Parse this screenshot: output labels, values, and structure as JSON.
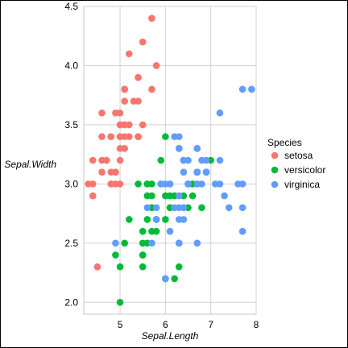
{
  "chart_data": {
    "type": "scatter",
    "title": "",
    "xlabel": "Sepal.Length",
    "ylabel": "Sepal.Width",
    "xlim": [
      4.2,
      8.0
    ],
    "ylim": [
      1.9,
      4.5
    ],
    "x_ticks": [
      "5",
      "6",
      "7",
      "8"
    ],
    "y_ticks": [
      "2.0",
      "2.5",
      "3.0",
      "3.5",
      "4.0",
      "4.5"
    ],
    "grid": true,
    "legend": {
      "title": "Species",
      "placement": "right"
    },
    "series": [
      {
        "name": "setosa",
        "color": "#F8766D",
        "points": [
          [
            5.1,
            3.5
          ],
          [
            4.9,
            3.0
          ],
          [
            4.7,
            3.2
          ],
          [
            4.6,
            3.1
          ],
          [
            5.0,
            3.6
          ],
          [
            5.4,
            3.9
          ],
          [
            4.6,
            3.4
          ],
          [
            5.0,
            3.4
          ],
          [
            4.4,
            2.9
          ],
          [
            4.9,
            3.1
          ],
          [
            5.4,
            3.7
          ],
          [
            4.8,
            3.4
          ],
          [
            4.8,
            3.0
          ],
          [
            4.3,
            3.0
          ],
          [
            5.8,
            4.0
          ],
          [
            5.7,
            4.4
          ],
          [
            5.4,
            3.9
          ],
          [
            5.1,
            3.5
          ],
          [
            5.7,
            3.8
          ],
          [
            5.1,
            3.8
          ],
          [
            5.4,
            3.4
          ],
          [
            5.1,
            3.7
          ],
          [
            4.6,
            3.6
          ],
          [
            5.1,
            3.3
          ],
          [
            4.8,
            3.4
          ],
          [
            5.0,
            3.0
          ],
          [
            5.0,
            3.4
          ],
          [
            5.2,
            3.5
          ],
          [
            5.2,
            3.4
          ],
          [
            4.7,
            3.2
          ],
          [
            4.8,
            3.1
          ],
          [
            5.4,
            3.4
          ],
          [
            5.2,
            4.1
          ],
          [
            5.5,
            4.2
          ],
          [
            4.9,
            3.1
          ],
          [
            5.0,
            3.2
          ],
          [
            5.5,
            3.5
          ],
          [
            4.9,
            3.6
          ],
          [
            4.4,
            3.0
          ],
          [
            5.1,
            3.4
          ],
          [
            5.0,
            3.5
          ],
          [
            4.5,
            2.3
          ],
          [
            4.4,
            3.2
          ],
          [
            5.0,
            3.5
          ],
          [
            5.1,
            3.8
          ],
          [
            4.8,
            3.0
          ],
          [
            5.1,
            3.8
          ],
          [
            4.6,
            3.2
          ],
          [
            5.3,
            3.7
          ],
          [
            5.0,
            3.3
          ]
        ]
      },
      {
        "name": "versicolor",
        "color": "#00BA38",
        "points": [
          [
            7.0,
            3.2
          ],
          [
            6.4,
            3.2
          ],
          [
            6.9,
            3.1
          ],
          [
            5.5,
            2.3
          ],
          [
            6.5,
            2.8
          ],
          [
            5.7,
            2.8
          ],
          [
            6.3,
            3.3
          ],
          [
            4.9,
            2.4
          ],
          [
            6.6,
            2.9
          ],
          [
            5.2,
            2.7
          ],
          [
            5.0,
            2.0
          ],
          [
            5.9,
            3.0
          ],
          [
            6.0,
            2.2
          ],
          [
            6.1,
            2.9
          ],
          [
            5.6,
            2.9
          ],
          [
            6.7,
            3.1
          ],
          [
            5.6,
            3.0
          ],
          [
            5.8,
            2.7
          ],
          [
            6.2,
            2.2
          ],
          [
            5.6,
            2.5
          ],
          [
            5.9,
            3.2
          ],
          [
            6.1,
            2.8
          ],
          [
            6.3,
            2.5
          ],
          [
            6.1,
            2.8
          ],
          [
            6.4,
            2.9
          ],
          [
            6.6,
            3.0
          ],
          [
            6.8,
            2.8
          ],
          [
            6.7,
            3.0
          ],
          [
            6.0,
            2.9
          ],
          [
            5.7,
            2.6
          ],
          [
            5.5,
            2.4
          ],
          [
            5.5,
            2.4
          ],
          [
            5.8,
            2.7
          ],
          [
            6.0,
            2.7
          ],
          [
            5.4,
            3.0
          ],
          [
            6.0,
            3.4
          ],
          [
            6.7,
            3.1
          ],
          [
            6.3,
            2.3
          ],
          [
            5.6,
            3.0
          ],
          [
            5.5,
            2.5
          ],
          [
            5.5,
            2.6
          ],
          [
            6.1,
            3.0
          ],
          [
            5.8,
            2.6
          ],
          [
            5.0,
            2.3
          ],
          [
            5.6,
            2.7
          ],
          [
            5.7,
            3.0
          ],
          [
            5.7,
            2.9
          ],
          [
            6.2,
            2.9
          ],
          [
            5.1,
            2.5
          ],
          [
            5.7,
            2.8
          ]
        ]
      },
      {
        "name": "virginica",
        "color": "#619CFF",
        "points": [
          [
            6.3,
            3.3
          ],
          [
            5.8,
            2.7
          ],
          [
            7.1,
            3.0
          ],
          [
            6.3,
            2.9
          ],
          [
            6.5,
            3.0
          ],
          [
            7.6,
            3.0
          ],
          [
            4.9,
            2.5
          ],
          [
            7.3,
            2.9
          ],
          [
            6.7,
            2.5
          ],
          [
            7.2,
            3.6
          ],
          [
            6.5,
            3.2
          ],
          [
            6.4,
            2.7
          ],
          [
            6.8,
            3.0
          ],
          [
            5.7,
            2.5
          ],
          [
            5.8,
            2.8
          ],
          [
            6.4,
            3.2
          ],
          [
            6.5,
            3.0
          ],
          [
            7.7,
            3.8
          ],
          [
            7.7,
            2.6
          ],
          [
            6.0,
            2.2
          ],
          [
            6.9,
            3.2
          ],
          [
            5.6,
            2.8
          ],
          [
            7.7,
            2.8
          ],
          [
            6.3,
            2.7
          ],
          [
            6.7,
            3.3
          ],
          [
            7.2,
            3.2
          ],
          [
            6.2,
            2.8
          ],
          [
            6.1,
            3.0
          ],
          [
            6.4,
            2.8
          ],
          [
            7.2,
            3.0
          ],
          [
            7.4,
            2.8
          ],
          [
            7.9,
            3.8
          ],
          [
            6.4,
            2.8
          ],
          [
            6.3,
            2.8
          ],
          [
            6.1,
            2.6
          ],
          [
            7.7,
            3.0
          ],
          [
            6.3,
            3.4
          ],
          [
            6.4,
            3.1
          ],
          [
            6.0,
            3.0
          ],
          [
            6.9,
            3.1
          ],
          [
            6.7,
            3.1
          ],
          [
            6.9,
            3.1
          ],
          [
            5.8,
            2.7
          ],
          [
            6.8,
            3.2
          ],
          [
            6.7,
            3.3
          ],
          [
            6.7,
            3.0
          ],
          [
            6.3,
            2.5
          ],
          [
            6.5,
            3.0
          ],
          [
            6.2,
            3.4
          ],
          [
            5.9,
            3.0
          ]
        ]
      }
    ]
  }
}
